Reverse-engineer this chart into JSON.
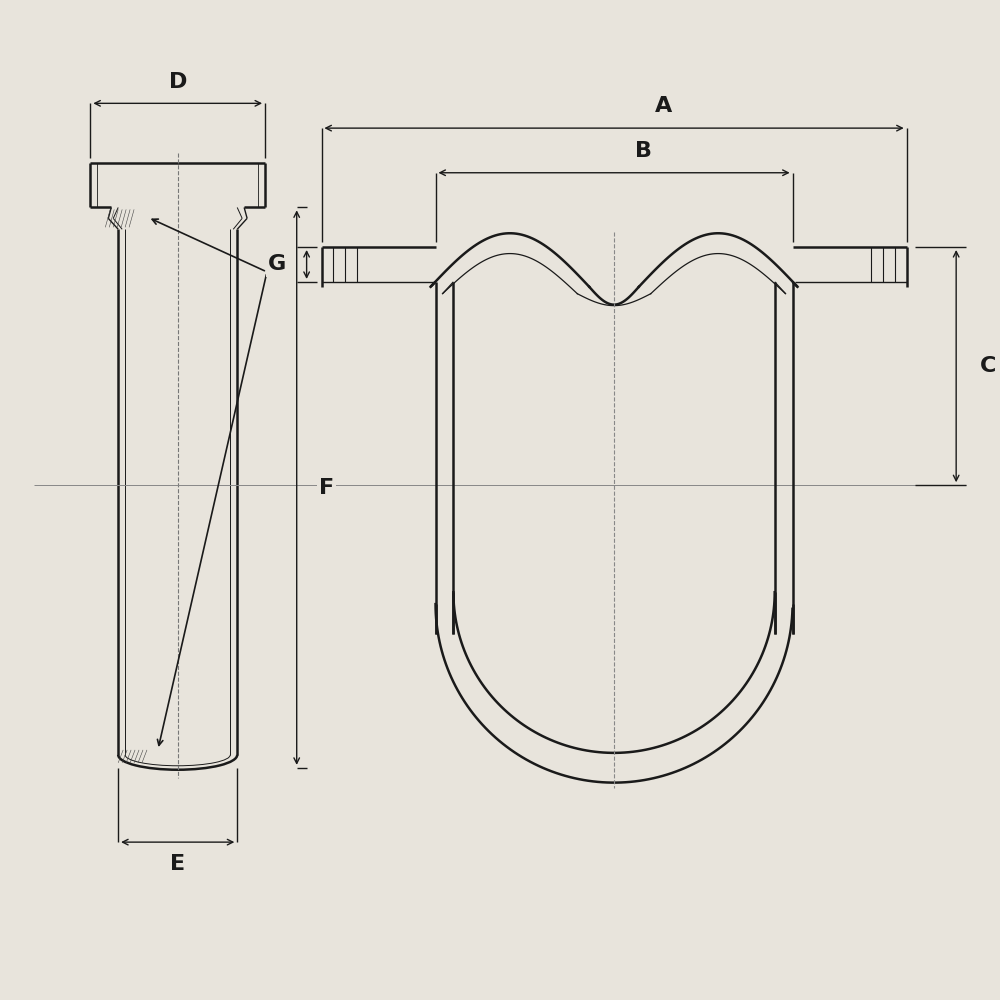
{
  "bg_color": "#e8e4dc",
  "line_color": "#1a1a1a",
  "dim_color": "#1a1a1a",
  "label_fontsize": 16,
  "label_fontweight": "bold",
  "figsize": [
    10,
    10
  ],
  "dpi": 100,
  "labels": [
    "A",
    "B",
    "C",
    "D",
    "E",
    "F",
    "G"
  ],
  "lw_main": 1.8,
  "lw_thin": 1.0,
  "lw_dim": 1.0
}
